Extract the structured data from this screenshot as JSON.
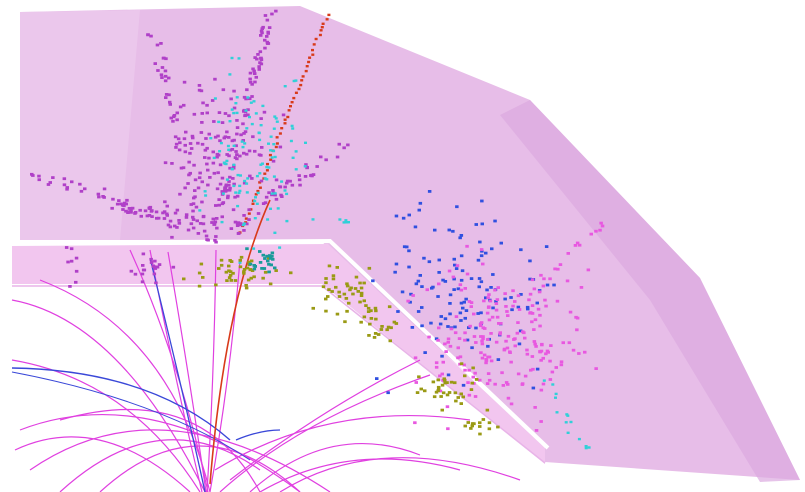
{
  "scene": {
    "kind": "particle-collision-event-display",
    "colors": {
      "background": "#ffffff",
      "calorimeter_volume": "#e6b8e6",
      "inner_band": "#f0c4ee",
      "track_magenta": "#e040e0",
      "track_blue": "#3a48d8",
      "track_red": "#d83a1a",
      "hit_purple": "#b040c8",
      "hit_cyan": "#30d0d8",
      "hit_blue": "#3050e0",
      "hit_pink": "#e858e0",
      "hit_olive": "#9a9a14",
      "hit_teal": "#1a9a9a"
    },
    "regions": [
      "calorimeter-volume",
      "inner-tracker"
    ]
  }
}
